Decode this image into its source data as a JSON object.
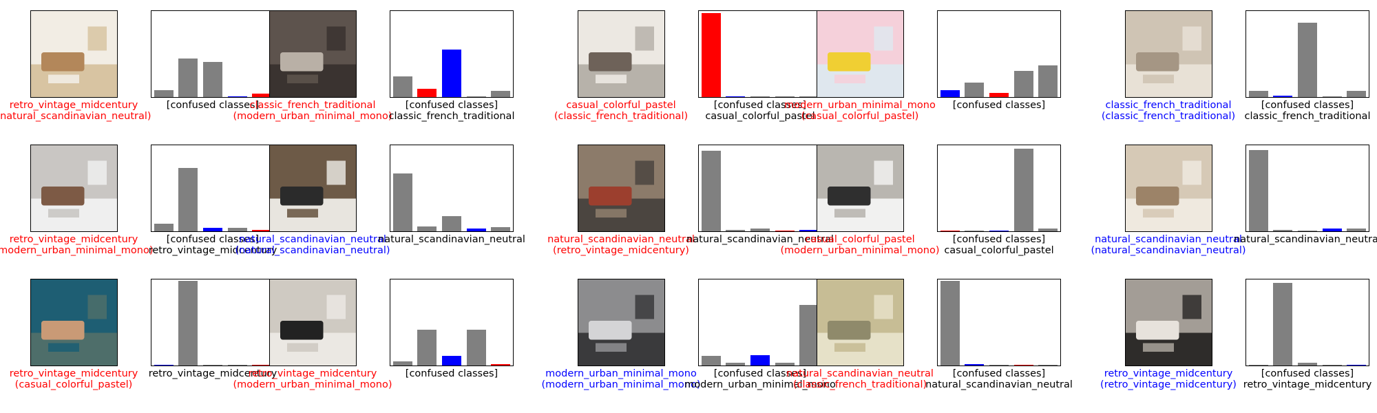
{
  "colors": {
    "predicted": "#ff0000",
    "true_label": "#0000ff",
    "other": "#808080",
    "caption_wrong": "#ff0000",
    "caption_right": "#0000ff",
    "caption_plot": "#000000"
  },
  "chart_data": {
    "type": "bar",
    "categories": [
      "casual_colorful_pastel",
      "classic_french_traditional",
      "modern_urban_minimal_mono",
      "natural_scandinavian_neutral",
      "retro_vintage_midcentury"
    ],
    "ylim": [
      0,
      1
    ],
    "grid": false,
    "legend": "none",
    "panels": [
      {
        "pred": "retro_vintage_midcentury",
        "true": "natural_scandinavian_neutral",
        "bar_title": "[confused classes]",
        "bar_subtitle": "",
        "values": [
          0.08,
          0.45,
          0.41,
          0.01,
          0.04
        ],
        "image": "living-room-photo",
        "palette": [
          "#d8c4a2",
          "#f2ede4",
          "#b3875a"
        ]
      },
      {
        "pred": "classic_french_traditional",
        "true": "modern_urban_minimal_mono",
        "bar_title": "[confused classes]",
        "bar_subtitle": "classic_french_traditional",
        "values": [
          0.24,
          0.1,
          0.56,
          0.01,
          0.07
        ],
        "image": "bedroom-photo",
        "palette": [
          "#3a3330",
          "#5d534d",
          "#b9b0a6"
        ]
      },
      {
        "pred": "casual_colorful_pastel",
        "true": "classic_french_traditional",
        "bar_title": "[confused classes]",
        "bar_subtitle": "casual_colorful_pastel",
        "values": [
          0.98,
          0.01,
          0.01,
          0.0,
          0.0
        ],
        "image": "dining-room-photo",
        "palette": [
          "#b7b2aa",
          "#ece8e2",
          "#6e6259"
        ]
      },
      {
        "pred": "modern_urban_minimal_mono",
        "true": "casual_colorful_pastel",
        "bar_title": "[confused classes]",
        "bar_subtitle": "",
        "values": [
          0.08,
          0.17,
          0.05,
          0.31,
          0.37
        ],
        "image": "pastel-living-room-photo",
        "palette": [
          "#dfe7ee",
          "#f5d0da",
          "#f0cf33"
        ]
      },
      {
        "pred": "classic_french_traditional",
        "true": "classic_french_traditional",
        "bar_title": "[confused classes]",
        "bar_subtitle": "classic_french_traditional",
        "values": [
          0.07,
          0.02,
          0.87,
          0.01,
          0.07
        ],
        "image": "bookshelf-photo",
        "palette": [
          "#e8e1d6",
          "#cfc4b4",
          "#a59684"
        ]
      },
      {
        "pred": "retro_vintage_midcentury",
        "true": "modern_urban_minimal_mono",
        "bar_title": "[confused classes]",
        "bar_subtitle": "retro_vintage_midcentury",
        "values": [
          0.09,
          0.74,
          0.04,
          0.04,
          0.02
        ],
        "image": "grey-lounge-photo",
        "palette": [
          "#efefef",
          "#c9c6c3",
          "#7d5a45"
        ]
      },
      {
        "pred": "natural_scandinavian_neutral",
        "true": "natural_scandinavian_neutral",
        "bar_title": "",
        "bar_subtitle": "natural_scandinavian_neutral",
        "values": [
          0.68,
          0.06,
          0.18,
          0.03,
          0.05
        ],
        "image": "mirror-hallway-photo",
        "palette": [
          "#e8e5df",
          "#6d5a47",
          "#2b2b2b"
        ]
      },
      {
        "pred": "natural_scandinavian_neutral",
        "true": "retro_vintage_midcentury",
        "bar_title": "",
        "bar_subtitle": "natural_scandinavian_neutral",
        "values": [
          0.94,
          0.02,
          0.03,
          0.01,
          0.02
        ],
        "image": "fireplace-room-photo",
        "palette": [
          "#4b4540",
          "#8c7b6a",
          "#9c3f2e"
        ]
      },
      {
        "pred": "casual_colorful_pastel",
        "true": "modern_urban_minimal_mono",
        "bar_title": "[confused classes]",
        "bar_subtitle": "casual_colorful_pastel",
        "values": [
          0.01,
          0.01,
          0.0,
          0.97,
          0.03
        ],
        "image": "white-living-room-photo",
        "palette": [
          "#f1f1f0",
          "#b9b6b0",
          "#2f2f2f"
        ]
      },
      {
        "pred": "natural_scandinavian_neutral",
        "true": "natural_scandinavian_neutral",
        "bar_title": "",
        "bar_subtitle": "natural_scandinavian_neutral",
        "values": [
          0.95,
          0.02,
          0.01,
          0.03,
          0.03
        ],
        "image": "cream-sofa-photo",
        "palette": [
          "#efe9df",
          "#d6c9b6",
          "#9c8368"
        ]
      },
      {
        "pred": "retro_vintage_midcentury",
        "true": "casual_colorful_pastel",
        "bar_title": "",
        "bar_subtitle": "retro_vintage_midcentury",
        "values": [
          0.01,
          0.99,
          0.01,
          0.01,
          0.01
        ],
        "image": "teal-lounge-photo",
        "palette": [
          "#4e6e6a",
          "#1e5e73",
          "#c99a76"
        ]
      },
      {
        "pred": "retro_vintage_midcentury",
        "true": "modern_urban_minimal_mono",
        "bar_title": "[confused classes]",
        "bar_subtitle": "",
        "values": [
          0.05,
          0.42,
          0.11,
          0.42,
          0.02
        ],
        "image": "white-sofa-photo",
        "palette": [
          "#ebe8e3",
          "#cfcac2",
          "#222222"
        ]
      },
      {
        "pred": "modern_urban_minimal_mono",
        "true": "modern_urban_minimal_mono",
        "bar_title": "[confused classes]",
        "bar_subtitle": "modern_urban_minimal_mono",
        "values": [
          0.11,
          0.03,
          0.12,
          0.03,
          0.71
        ],
        "image": "dark-sectional-photo",
        "palette": [
          "#3a3a3c",
          "#8c8c8e",
          "#d4d4d6"
        ]
      },
      {
        "pred": "natural_scandinavian_neutral",
        "true": "classic_french_traditional",
        "bar_title": "[confused classes]",
        "bar_subtitle": "natural_scandinavian_neutral",
        "values": [
          0.99,
          0.02,
          0.0,
          0.0,
          0.0
        ],
        "image": "french-salon-photo",
        "palette": [
          "#e6e1c8",
          "#c7bd95",
          "#8f8a6b"
        ]
      },
      {
        "pred": "retro_vintage_midcentury",
        "true": "retro_vintage_midcentury",
        "bar_title": "[confused classes]",
        "bar_subtitle": "retro_vintage_midcentury",
        "values": [
          0.01,
          0.97,
          0.03,
          0.01,
          0.0
        ],
        "image": "dark-chair-photo",
        "palette": [
          "#2e2c2a",
          "#a39d96",
          "#e7e2dc"
        ]
      }
    ]
  }
}
